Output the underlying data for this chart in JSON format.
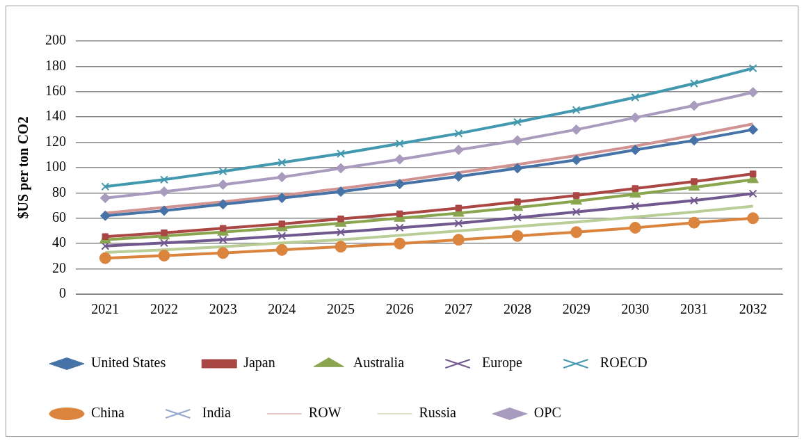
{
  "chart_data": {
    "type": "line",
    "ylabel": "$US per ton CO2",
    "categories": [
      "2021",
      "2022",
      "2023",
      "2024",
      "2025",
      "2026",
      "2027",
      "2028",
      "2029",
      "2030",
      "2031",
      "2032"
    ],
    "ylim": [
      0,
      200
    ],
    "yticks": [
      0,
      20,
      40,
      60,
      80,
      100,
      120,
      140,
      160,
      180,
      200
    ],
    "grid": "y",
    "legend": "bottom",
    "series": [
      {
        "name": "United States",
        "color": "#4572a7",
        "marker": "diamond",
        "values": [
          62,
          66,
          71,
          76,
          81,
          87,
          93,
          99.5,
          106,
          114,
          121.5,
          130
        ]
      },
      {
        "name": "Japan",
        "color": "#aa4643",
        "marker": "square",
        "values": [
          45.5,
          48.5,
          52,
          55.5,
          59.5,
          63.5,
          68,
          73,
          78,
          83.5,
          89,
          95
        ]
      },
      {
        "name": "Australia",
        "color": "#89a54e",
        "marker": "triangle",
        "values": [
          43,
          46,
          49,
          52.5,
          56,
          60,
          64,
          68.5,
          73.5,
          79,
          84.5,
          90.5
        ]
      },
      {
        "name": "Europe",
        "color": "#71588f",
        "marker": "cross",
        "values": [
          38,
          40.5,
          43,
          46,
          49,
          52.5,
          56,
          60.5,
          65,
          69.5,
          74,
          79.5
        ]
      },
      {
        "name": "ROECD",
        "color": "#4198af",
        "marker": "cross",
        "values": [
          85,
          90.5,
          97,
          104,
          111,
          119,
          127,
          136,
          145.5,
          155.5,
          166.5,
          178.5
        ]
      },
      {
        "name": "China",
        "color": "#db843d",
        "marker": "circle",
        "values": [
          28.5,
          30.5,
          32.5,
          35,
          37.5,
          40,
          43,
          46,
          49,
          52.5,
          56.5,
          60
        ]
      },
      {
        "name": "India",
        "color": "#93a9cf",
        "marker": "cross",
        "values": [
          null,
          null,
          null,
          null,
          null,
          null,
          null,
          null,
          null,
          null,
          null,
          null
        ]
      },
      {
        "name": "ROW",
        "color": "#d19392",
        "marker": "none",
        "values": [
          64,
          68.5,
          73,
          78,
          83.5,
          89.5,
          96,
          102.5,
          109.5,
          117,
          125.5,
          134.5
        ]
      },
      {
        "name": "Russia",
        "color": "#b9cd96",
        "marker": "none",
        "values": [
          33,
          35,
          37.5,
          40.5,
          43,
          46.5,
          50,
          53.5,
          57,
          61,
          65,
          69.5
        ]
      },
      {
        "name": "OPC",
        "color": "#a99bbd",
        "marker": "diamond",
        "values": [
          76,
          81,
          86.5,
          92.5,
          99.5,
          106.5,
          114,
          121.5,
          130,
          139.5,
          149,
          159.5
        ]
      }
    ]
  }
}
